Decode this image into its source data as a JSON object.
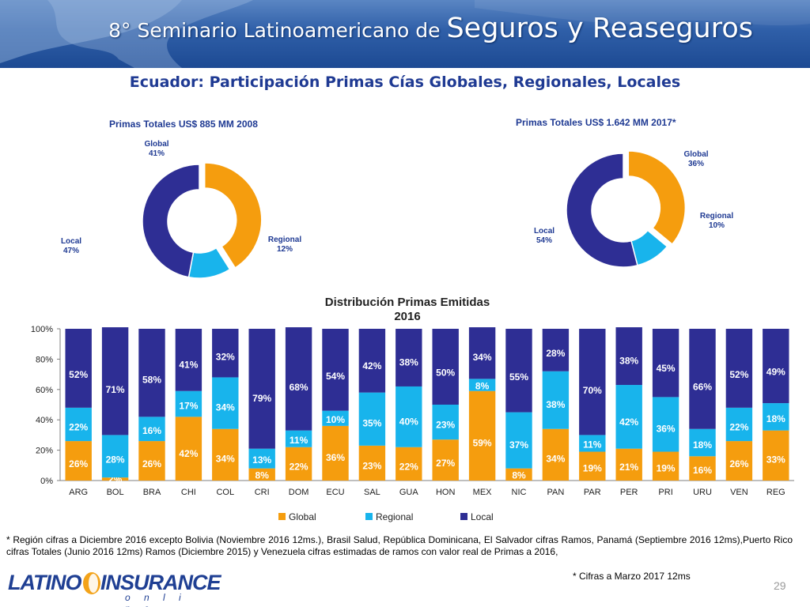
{
  "banner": {
    "title_part1": "8° Seminario Latinoamericano de ",
    "title_part2": "Seguros y Reaseguros"
  },
  "slide_title": "Ecuador: Participación Primas Cías Globales, Regionales, Locales",
  "chart_data": [
    {
      "type": "pie",
      "donut": true,
      "title": "Primas Totales US$ 885 MM 2008",
      "slices": [
        {
          "name": "Global",
          "value": 41,
          "label": "41%",
          "color": "#F59D0E"
        },
        {
          "name": "Regional",
          "value": 12,
          "label": "12%",
          "color": "#18B4EC"
        },
        {
          "name": "Local",
          "value": 47,
          "label": "47%",
          "color": "#2E2E94"
        }
      ]
    },
    {
      "type": "pie",
      "donut": true,
      "title": "Primas Totales US$ 1.642 MM 2017*",
      "slices": [
        {
          "name": "Global",
          "value": 36,
          "label": "36%",
          "color": "#F59D0E"
        },
        {
          "name": "Regional",
          "value": 10,
          "label": "10%",
          "color": "#18B4EC"
        },
        {
          "name": "Local",
          "value": 54,
          "label": "54%",
          "color": "#2E2E94"
        }
      ]
    },
    {
      "type": "bar",
      "stacked": true,
      "title_lines": [
        "Distribución Primas Emitidas",
        "2016"
      ],
      "categories": [
        "ARG",
        "BOL",
        "BRA",
        "CHI",
        "COL",
        "CRI",
        "DOM",
        "ECU",
        "SAL",
        "GUA",
        "HON",
        "MEX",
        "NIC",
        "PAN",
        "PAR",
        "PER",
        "PRI",
        "URU",
        "VEN",
        "REG"
      ],
      "series": [
        {
          "name": "Global",
          "color": "#F59D0E",
          "values": [
            26,
            2,
            26,
            42,
            34,
            8,
            22,
            36,
            23,
            22,
            27,
            59,
            8,
            34,
            19,
            21,
            19,
            16,
            26,
            33
          ]
        },
        {
          "name": "Regional",
          "color": "#18B4EC",
          "values": [
            22,
            28,
            16,
            17,
            34,
            13,
            11,
            10,
            35,
            40,
            23,
            8,
            37,
            38,
            11,
            42,
            36,
            18,
            22,
            18
          ]
        },
        {
          "name": "Local",
          "color": "#2E2E94",
          "values": [
            52,
            71,
            58,
            41,
            32,
            79,
            68,
            54,
            42,
            38,
            50,
            34,
            55,
            28,
            70,
            38,
            45,
            66,
            52,
            49
          ]
        }
      ],
      "ylim": [
        0,
        100
      ],
      "yticks": [
        "0%",
        "20%",
        "40%",
        "60%",
        "80%",
        "100%"
      ],
      "legend_position": "bottom",
      "grid": false
    }
  ],
  "footnote": "* Región cifras a Diciembre 2016 excepto Bolivia (Noviembre 2016 12ms.), Brasil Salud, República Dominicana, El Salvador cifras Ramos, Panamá (Septiembre 2016 12ms),Puerto Rico cifras Totales (Junio 2016 12ms) Ramos (Diciembre 2015) y Venezuela cifras estimadas de ramos con valor real de Primas a 2016,",
  "footnote2": "* Cifras a Marzo 2017 12ms",
  "page_number": "29",
  "logo": {
    "word1": "LATINO",
    "word2": "INSURANCE",
    "word3": "o n l i n e"
  }
}
